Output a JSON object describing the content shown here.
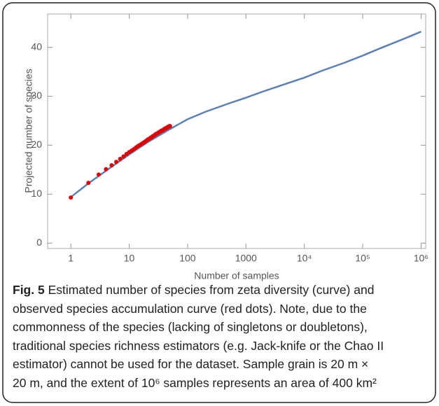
{
  "chart_data": {
    "type": "line",
    "xlabel": "Number of samples",
    "ylabel": "Projected number of species",
    "xscale": "log",
    "xlim": [
      0.4,
      1200000
    ],
    "ylim": [
      -1.1,
      46.8
    ],
    "xticks": [
      1,
      10,
      100,
      1000,
      {
        "value": 10000,
        "label": "10⁴"
      },
      {
        "value": 100000,
        "label": "10⁵"
      },
      {
        "value": 1000000,
        "label": "10⁶"
      }
    ],
    "yticks": [
      0,
      10,
      20,
      30,
      40
    ],
    "series": [
      {
        "type": "line",
        "color": "#5b80b4",
        "x": [
          1,
          2,
          5,
          10,
          20,
          50,
          100,
          200,
          500,
          1000,
          2000,
          5000,
          10000,
          20000,
          50000,
          100000,
          200000,
          500000,
          1000000
        ],
        "values": [
          9.4,
          12.2,
          15.6,
          18.1,
          20.5,
          23.3,
          25.3,
          26.8,
          28.5,
          29.7,
          31.0,
          32.6,
          33.8,
          35.2,
          36.9,
          38.3,
          39.8,
          41.7,
          43.2
        ]
      },
      {
        "type": "scatter",
        "color": "#e00000",
        "x": [
          1,
          2,
          3,
          4,
          5,
          6,
          7,
          8,
          9,
          10,
          11,
          12,
          13,
          14,
          15,
          16,
          17,
          18,
          19,
          20,
          21,
          22,
          23,
          24,
          25,
          26,
          27,
          28,
          29,
          30,
          31,
          32,
          33,
          34,
          35,
          36,
          37,
          38,
          39,
          40,
          41,
          42,
          43,
          44,
          45,
          46,
          47,
          48,
          49,
          50
        ],
        "values": [
          9.3,
          12.3,
          14.0,
          15.1,
          15.9,
          16.6,
          17.2,
          17.7,
          18.2,
          18.6,
          18.9,
          19.2,
          19.5,
          19.8,
          20.0,
          20.2,
          20.4,
          20.6,
          20.8,
          21.0,
          21.2,
          21.3,
          21.5,
          21.6,
          21.8,
          21.9,
          22.0,
          22.2,
          22.3,
          22.4,
          22.5,
          22.6,
          22.7,
          22.8,
          22.9,
          23.0,
          23.0,
          23.1,
          23.2,
          23.3,
          23.4,
          23.4,
          23.5,
          23.6,
          23.6,
          23.7,
          23.8,
          23.8,
          23.9,
          23.9
        ]
      }
    ]
  },
  "caption": {
    "label": "Fig. 5",
    "lines": [
      " Estimated number of species from zeta diversity (curve) and",
      "observed species accumulation curve (red dots). Note, due to the",
      "commonness of the species (lacking of singletons or doubletons),",
      "traditional species richness estimators (e.g. Jack-knife or the Chao II",
      "estimator) cannot be used for the dataset. Sample grain is 20 m ×",
      "20 m, and the extent of 10⁶ samples represents an area of 400 km²"
    ]
  }
}
